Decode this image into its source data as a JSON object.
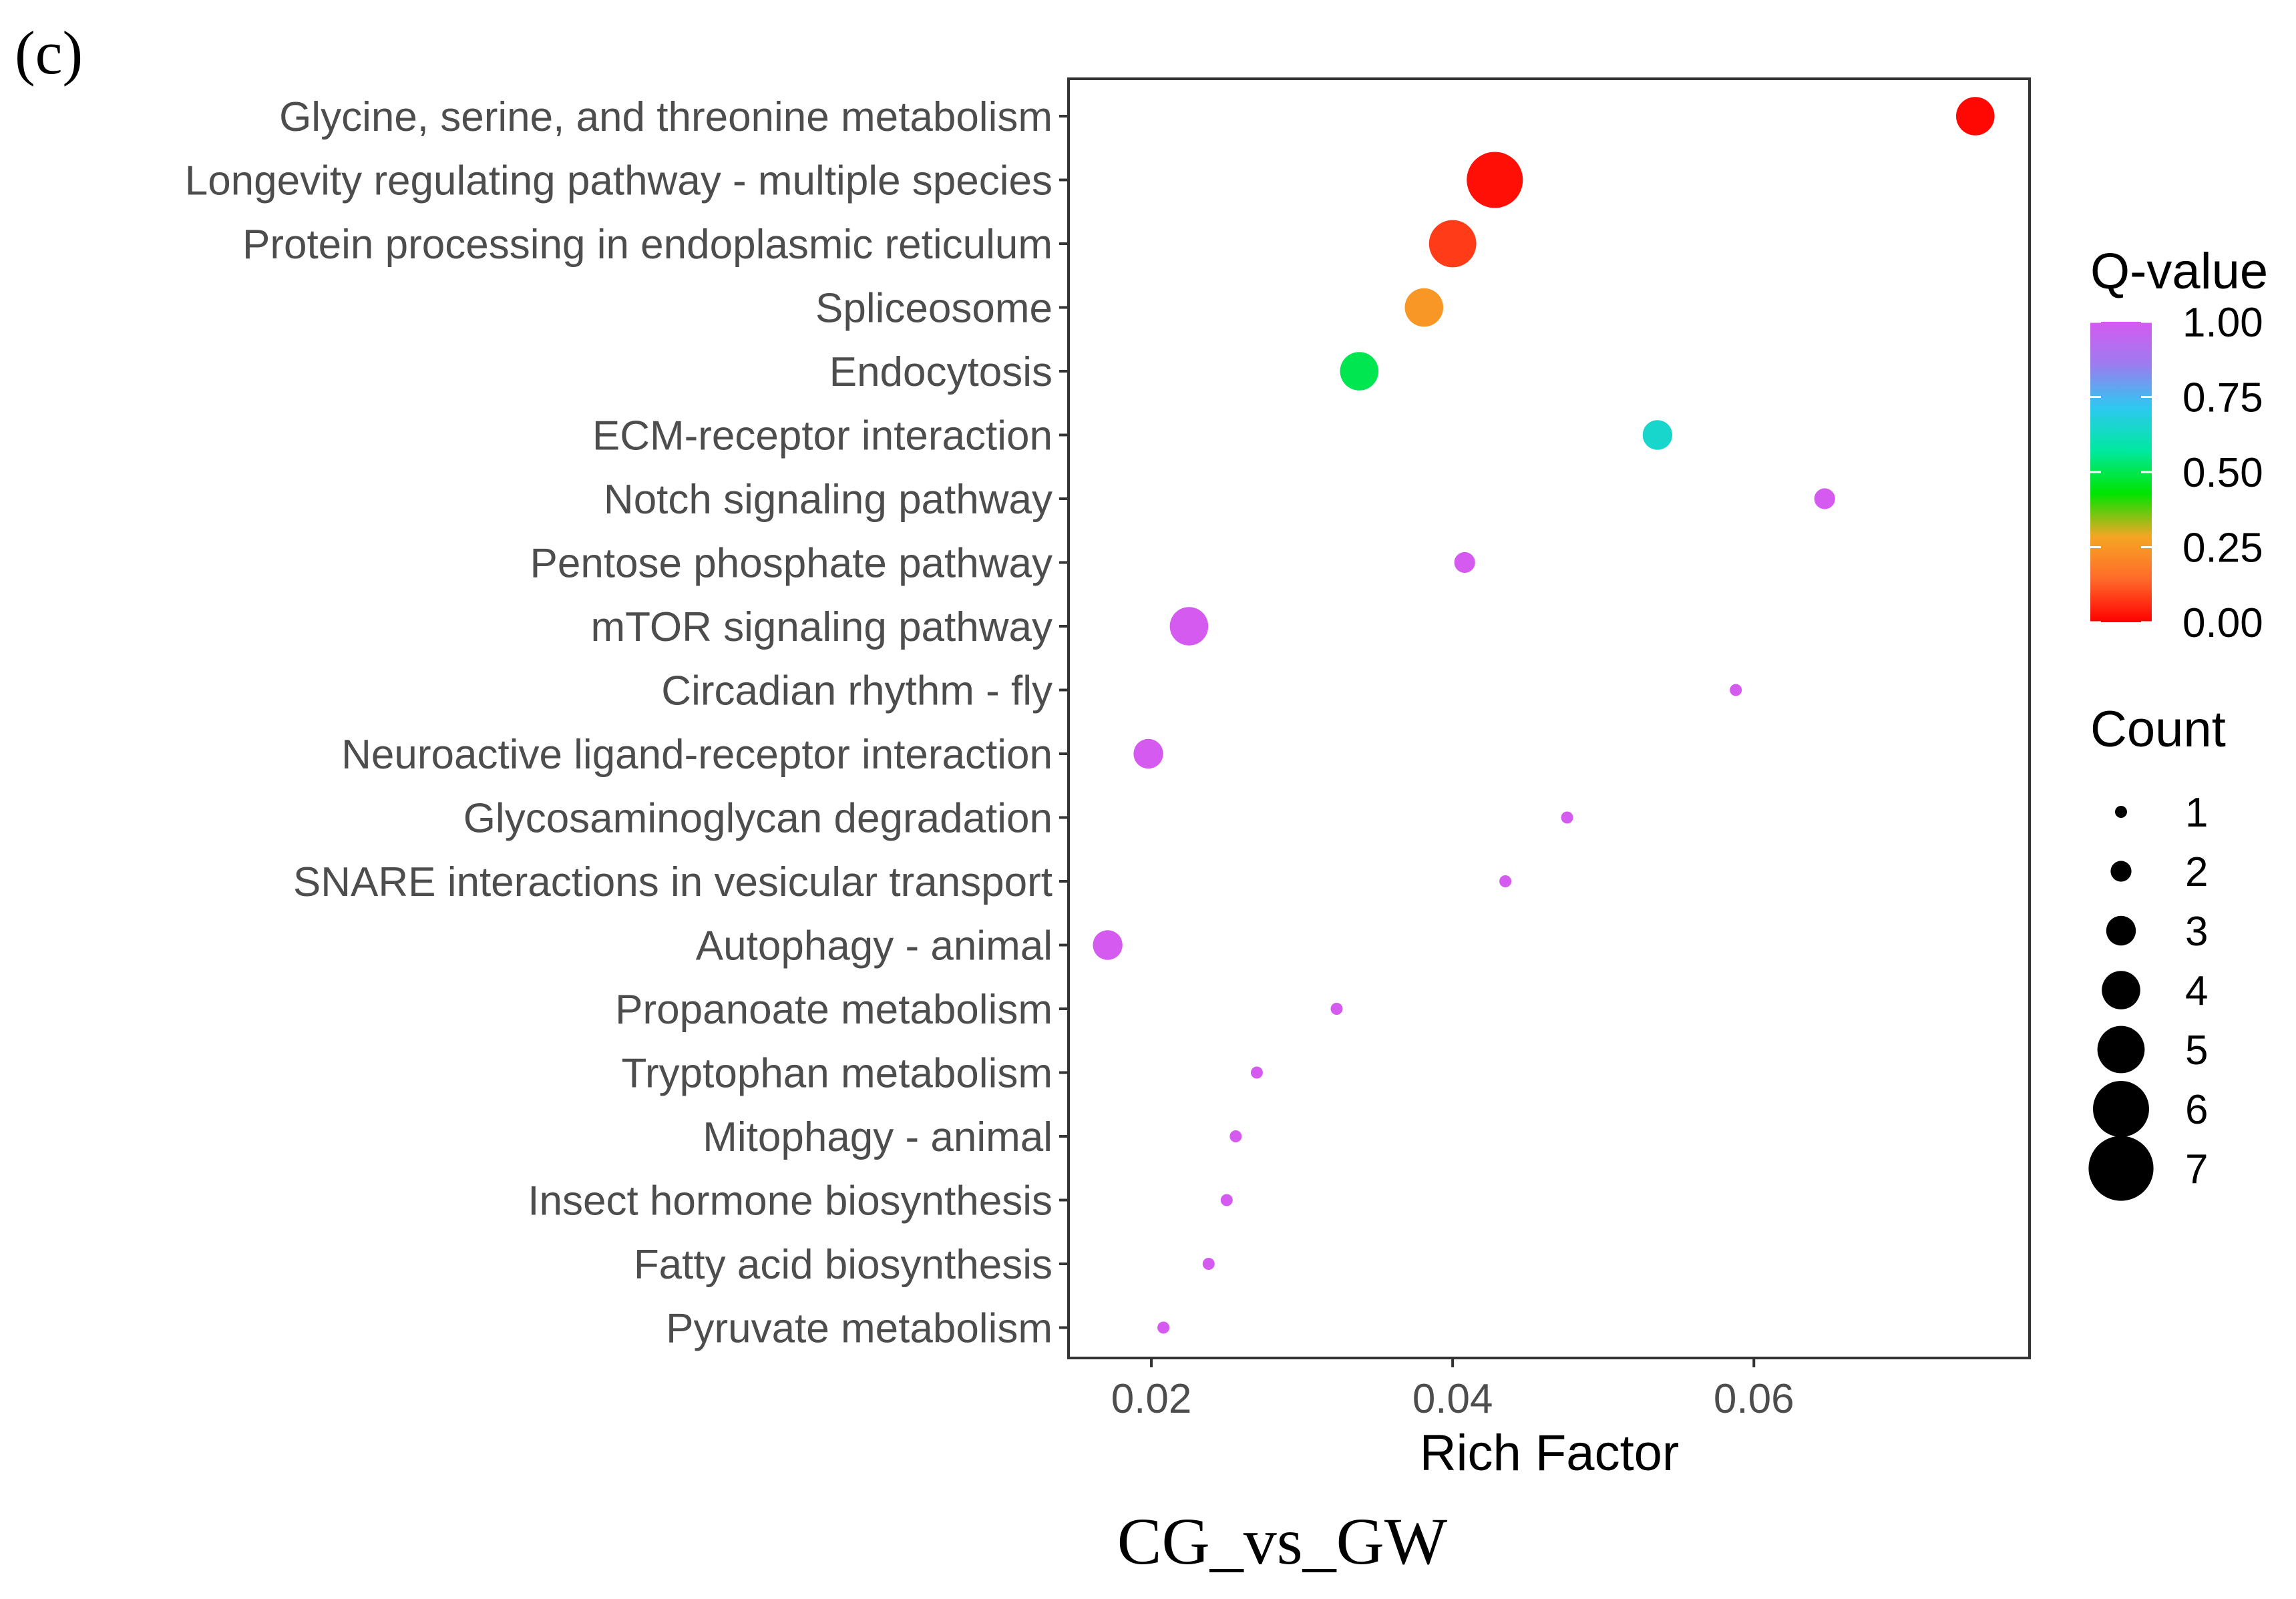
{
  "panel_label": "(c)",
  "comparison_label": "CG_vs_GW",
  "chart_data": {
    "type": "scatter",
    "title": "",
    "xlabel": "Rich Factor",
    "ylabel": "",
    "xlim": [
      0.0145,
      0.0783
    ],
    "xticks": [
      0.02,
      0.04,
      0.06
    ],
    "xtick_labels": [
      "0.02",
      "0.04",
      "0.06"
    ],
    "categories": [
      "Glycine, serine, and threonine metabolism",
      "Longevity regulating pathway - multiple species",
      "Protein processing in endoplasmic reticulum",
      "Spliceosome",
      "Endocytosis",
      "ECM-receptor interaction",
      "Notch signaling pathway",
      "Pentose phosphate pathway",
      "mTOR signaling pathway",
      "Circadian rhythm - fly",
      "Neuroactive ligand-receptor interaction",
      "Glycosaminoglycan degradation",
      "SNARE interactions in vesicular transport",
      "Autophagy - animal",
      "Propanoate metabolism",
      "Tryptophan metabolism",
      "Mitophagy - animal",
      "Insect hormone biosynthesis",
      "Fatty acid biosynthesis",
      "Pyruvate metabolism"
    ],
    "rich_factor": [
      0.0747,
      0.0428,
      0.04,
      0.0381,
      0.0338,
      0.0536,
      0.0647,
      0.0408,
      0.0225,
      0.0588,
      0.0198,
      0.0476,
      0.0435,
      0.0171,
      0.0323,
      0.027,
      0.0256,
      0.025,
      0.0238,
      0.0208
    ],
    "count": [
      4,
      6,
      5,
      4,
      4,
      3,
      2,
      2,
      4,
      1,
      3,
      1,
      1,
      3,
      1,
      1,
      1,
      1,
      1,
      1
    ],
    "q_value": [
      0.01,
      0.02,
      0.08,
      0.25,
      0.5,
      0.65,
      1.0,
      1.0,
      1.0,
      1.0,
      1.0,
      1.0,
      1.0,
      1.0,
      1.0,
      1.0,
      1.0,
      1.0,
      1.0,
      1.0
    ],
    "color_legend": {
      "title": "Q-value",
      "ticks": [
        1.0,
        0.75,
        0.5,
        0.25,
        0.0
      ],
      "tick_labels": [
        "1.00",
        "0.75",
        "0.50",
        "0.25",
        "0.00"
      ],
      "gradient": [
        "#ff0000",
        "#ff6a2a",
        "#f5a623",
        "#00e400",
        "#00e8a0",
        "#2ec8f0",
        "#9c7cf0",
        "#d45af0"
      ]
    },
    "size_legend": {
      "title": "Count",
      "values": [
        1,
        2,
        3,
        4,
        5,
        6,
        7
      ],
      "labels": [
        "1",
        "2",
        "3",
        "4",
        "5",
        "6",
        "7"
      ]
    }
  }
}
